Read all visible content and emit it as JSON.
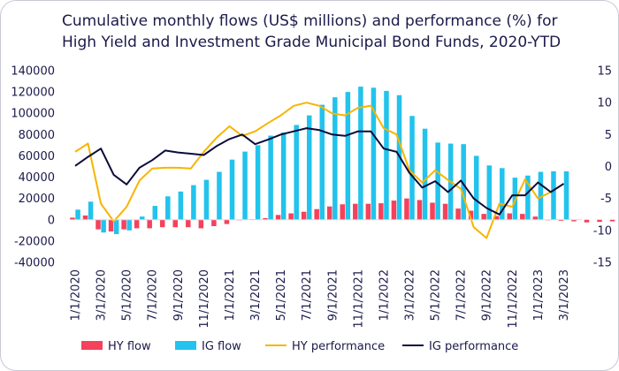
{
  "chart_data": {
    "type": "bar",
    "title_lines": [
      "Cumulative monthly flows (US$ millions) and performance (%) for",
      "High Yield and Investment Grade Municipal Bond Funds, 2020-YTD"
    ],
    "x_tick_labels": [
      "1/1/2020",
      "3/1/2020",
      "5/1/2020",
      "7/1/2020",
      "9/1/2020",
      "11/1/2020",
      "1/1/2021",
      "3/1/2021",
      "5/1/2021",
      "7/1/2021",
      "9/1/2021",
      "11/1/2021",
      "1/1/2022",
      "3/1/2022",
      "5/1/2022",
      "7/1/2022",
      "9/1/2022",
      "11/1/2022",
      "1/1/2023",
      "3/1/2023"
    ],
    "y_left": {
      "ylim": [
        -40000,
        140000
      ],
      "ticks": [
        -40000,
        -20000,
        0,
        20000,
        40000,
        60000,
        80000,
        100000,
        120000,
        140000
      ]
    },
    "y_right": {
      "ylim": [
        -15,
        15
      ],
      "ticks": [
        -15,
        -10,
        -5,
        0,
        5,
        10,
        15
      ],
      "tick_labels": [
        "-15",
        "-10",
        "-5",
        "0",
        "5",
        "10",
        "15"
      ]
    },
    "series": [
      {
        "name": "HY flow",
        "kind": "bar",
        "axis": "left",
        "color": "#f5415c",
        "values": [
          2000,
          4000,
          -9000,
          -11000,
          -9000,
          -8000,
          -8000,
          -7000,
          -7000,
          -7000,
          -8000,
          -6000,
          -4000,
          0,
          500,
          1500,
          4500,
          6000,
          7500,
          10000,
          12500,
          14500,
          15000,
          15000,
          15500,
          18000,
          20000,
          18500,
          16000,
          15000,
          10500,
          8500,
          5500,
          3500,
          6000,
          5500,
          3000,
          0,
          -1000,
          -1500,
          -2500,
          -2000,
          -1500,
          -1000,
          -1000
        ]
      },
      {
        "name": "IG flow",
        "kind": "bar",
        "axis": "left",
        "color": "#22c3ec",
        "values": [
          9500,
          17000,
          -12000,
          -13500,
          -10000,
          3000,
          13000,
          22000,
          26500,
          32500,
          37500,
          45000,
          56500,
          64000,
          70000,
          79000,
          82000,
          89000,
          98000,
          108000,
          115000,
          120000,
          125000,
          124000,
          121000,
          117000,
          97500,
          85500,
          72500,
          71500,
          71000,
          60000,
          51000,
          48500,
          39500,
          41500,
          45000,
          45500,
          45500
        ]
      },
      {
        "name": "HY performance",
        "kind": "line",
        "axis": "right",
        "color": "#f7b500",
        "values": [
          2.3,
          3.6,
          -5.8,
          -8.6,
          -6.3,
          -2.2,
          -0.3,
          -0.2,
          -0.2,
          -0.3,
          2.3,
          4.5,
          6.3,
          4.8,
          5.5,
          6.8,
          8.0,
          9.5,
          10.0,
          9.5,
          8.3,
          8.0,
          9.2,
          9.5,
          6.0,
          5.0,
          -0.6,
          -2.5,
          -0.6,
          -2.1,
          -3.5,
          -9.5,
          -11.2,
          -5.8,
          -6.3,
          -2.0,
          -5.0,
          -4.0
        ]
      },
      {
        "name": "IG performance",
        "kind": "line",
        "axis": "right",
        "color": "#0c0c3a",
        "values": [
          0.1,
          1.5,
          2.8,
          -1.3,
          -2.8,
          -0.2,
          1.0,
          2.5,
          2.2,
          2.0,
          1.8,
          3.2,
          4.3,
          5.0,
          3.5,
          4.2,
          5.0,
          5.5,
          6.0,
          5.7,
          5.0,
          4.8,
          5.5,
          5.5,
          2.8,
          2.3,
          -1.0,
          -3.3,
          -2.3,
          -4.0,
          -2.2,
          -5.0,
          -6.5,
          -7.5,
          -4.5,
          -4.5,
          -2.5,
          -4.0,
          -2.7
        ]
      }
    ],
    "grid": false,
    "legend_position": "bottom"
  }
}
